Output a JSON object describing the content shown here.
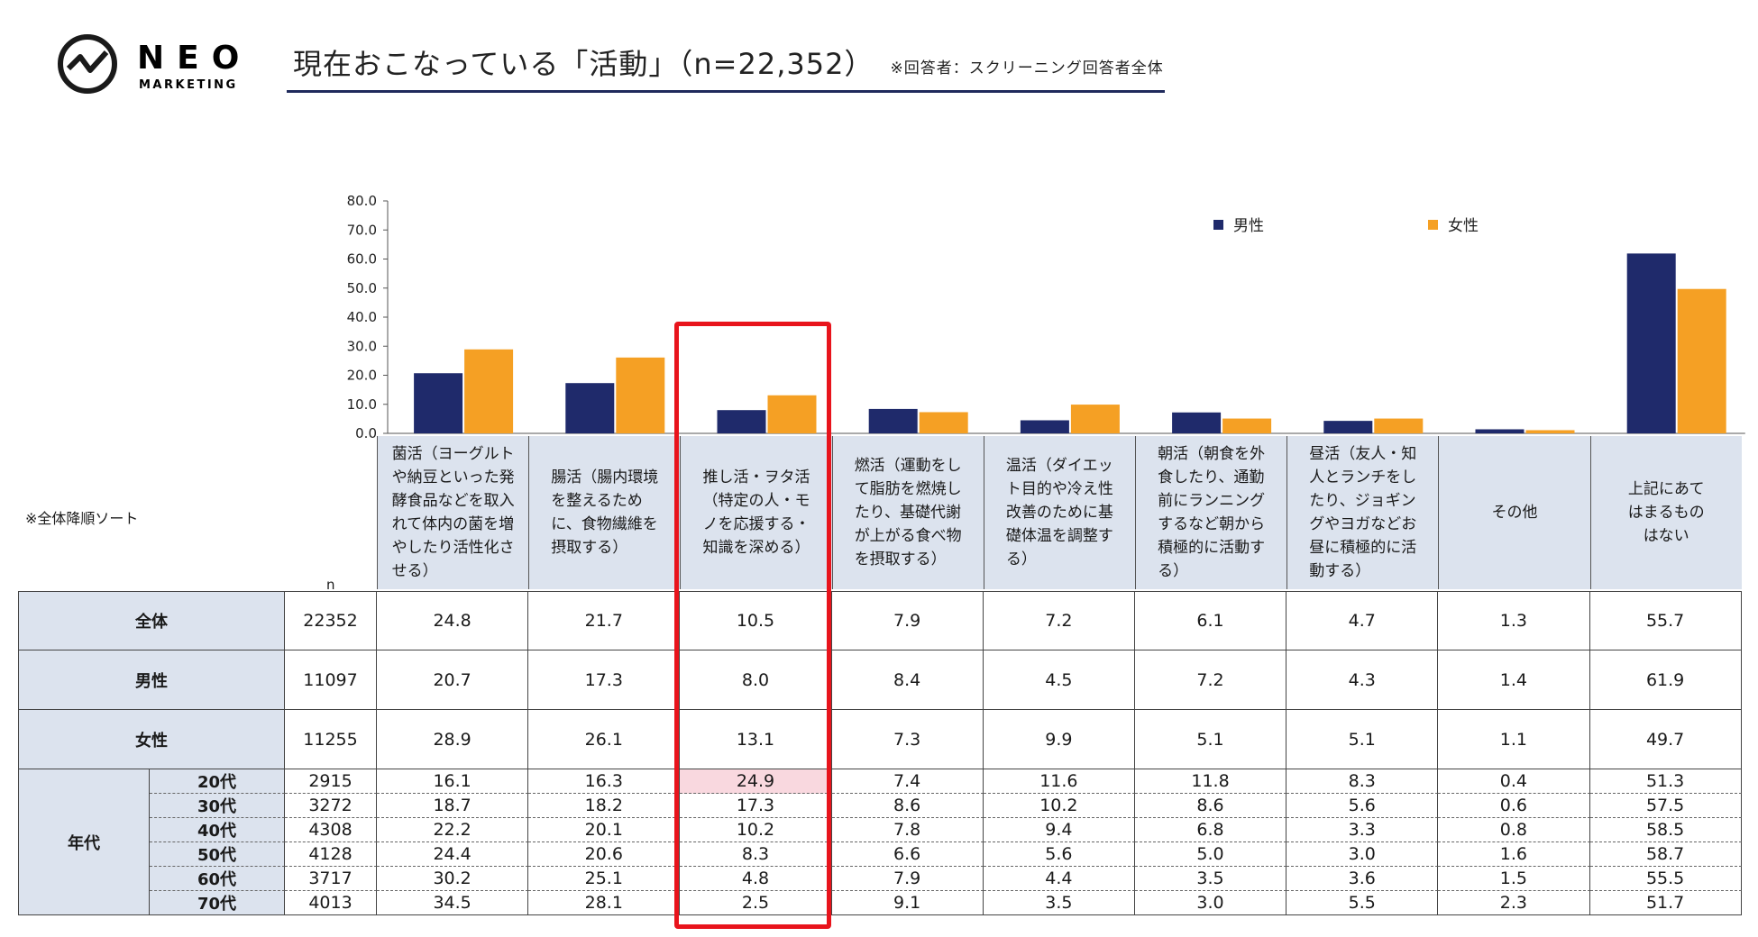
{
  "header": {
    "logo_main": "NEO",
    "logo_sub": "MARKETING",
    "title": "現在おこなっている「活動」（n=22,352）",
    "respondent_note": "※回答者：スクリーニング回答者全体"
  },
  "sort_note": "※全体降順ソート",
  "n_header": "n",
  "colors": {
    "male": "#1f2a6b",
    "female": "#f5a024",
    "highlight_cell": "#f9d8df",
    "redbox": "#e8141c",
    "header_bg": "#dce3ee"
  },
  "chart_data": {
    "type": "bar",
    "categories": [
      "菌活（ヨーグルトや納豆といった発酵食品などを取入れて体内の菌を増やしたり活性化させる）",
      "腸活（腸内環境を整えるために、食物繊維を摂取する）",
      "推し活・ヲタ活（特定の人・モノを応援する・知識を深める）",
      "燃活（運動をして脂肪を燃焼したり、基礎代謝が上がる食べ物を摂取する）",
      "温活（ダイエット目的や冷え性改善のために基礎体温を調整する）",
      "朝活（朝食を外食したり、通勤前にランニングするなど朝から積極的に活動する）",
      "昼活（友人・知人とランチをしたり、ジョギングやヨガなどお昼に積極的に活動する）",
      "その他",
      "上記にあてはまるものはない"
    ],
    "category_lines": [
      [
        "菌活（ヨーグルト",
        "や納豆といった発",
        "酵食品などを取入",
        "れて体内の菌を増",
        "やしたり活性化さ",
        "せる）"
      ],
      [
        "腸活（腸内環境",
        "を整えるため",
        "に、食物繊維を",
        "摂取する）"
      ],
      [
        "推し活・ヲタ活",
        "（特定の人・モ",
        "ノを応援する・",
        "知識を深める）"
      ],
      [
        "燃活（運動をし",
        "て脂肪を燃焼し",
        "たり、基礎代謝",
        "が上がる食べ物",
        "を摂取する）"
      ],
      [
        "温活（ダイエッ",
        "ト目的や冷え性",
        "改善のために基",
        "礎体温を調整す",
        "る）"
      ],
      [
        "朝活（朝食を外",
        "食したり、通勤",
        "前にランニング",
        "するなど朝から",
        "積極的に活動す",
        "る）"
      ],
      [
        "昼活（友人・知",
        "人とランチをし",
        "たり、ジョギン",
        "グやヨガなどお",
        "昼に積極的に活",
        "動する）"
      ],
      [
        "その他"
      ],
      [
        "上記にあて",
        "はまるもの",
        "はない"
      ]
    ],
    "series": [
      {
        "name": "男性",
        "values": [
          20.7,
          17.3,
          8.0,
          8.4,
          4.5,
          7.2,
          4.3,
          1.4,
          61.9
        ]
      },
      {
        "name": "女性",
        "values": [
          28.9,
          26.1,
          13.1,
          7.3,
          9.9,
          5.1,
          5.1,
          1.1,
          49.7
        ]
      }
    ],
    "ylim": [
      0,
      80
    ],
    "yticks": [
      "0.0",
      "10.0",
      "20.0",
      "30.0",
      "40.0",
      "50.0",
      "60.0",
      "70.0",
      "80.0"
    ],
    "legend": [
      "男性",
      "女性"
    ]
  },
  "table": {
    "main_rows": [
      {
        "label": "全体",
        "n": "22352",
        "values": [
          "24.8",
          "21.7",
          "10.5",
          "7.9",
          "7.2",
          "6.1",
          "4.7",
          "1.3",
          "55.7"
        ]
      },
      {
        "label": "男性",
        "n": "11097",
        "values": [
          "20.7",
          "17.3",
          "8.0",
          "8.4",
          "4.5",
          "7.2",
          "4.3",
          "1.4",
          "61.9"
        ]
      },
      {
        "label": "女性",
        "n": "11255",
        "values": [
          "28.9",
          "26.1",
          "13.1",
          "7.3",
          "9.9",
          "5.1",
          "5.1",
          "1.1",
          "49.7"
        ]
      }
    ],
    "age_group_label": "年代",
    "age_rows": [
      {
        "label": "20代",
        "n": "2915",
        "values": [
          "16.1",
          "16.3",
          "24.9",
          "7.4",
          "11.6",
          "11.8",
          "8.3",
          "0.4",
          "51.3"
        ]
      },
      {
        "label": "30代",
        "n": "3272",
        "values": [
          "18.7",
          "18.2",
          "17.3",
          "8.6",
          "10.2",
          "8.6",
          "5.6",
          "0.6",
          "57.5"
        ]
      },
      {
        "label": "40代",
        "n": "4308",
        "values": [
          "22.2",
          "20.1",
          "10.2",
          "7.8",
          "9.4",
          "6.8",
          "3.3",
          "0.8",
          "58.5"
        ]
      },
      {
        "label": "50代",
        "n": "4128",
        "values": [
          "24.4",
          "20.6",
          "8.3",
          "6.6",
          "5.6",
          "5.0",
          "3.0",
          "1.6",
          "58.7"
        ]
      },
      {
        "label": "60代",
        "n": "3717",
        "values": [
          "30.2",
          "25.1",
          "4.8",
          "7.9",
          "4.4",
          "3.5",
          "3.6",
          "1.5",
          "55.5"
        ]
      },
      {
        "label": "70代",
        "n": "4013",
        "values": [
          "34.5",
          "28.1",
          "2.5",
          "9.1",
          "3.5",
          "3.0",
          "5.5",
          "2.3",
          "51.7"
        ]
      }
    ]
  }
}
